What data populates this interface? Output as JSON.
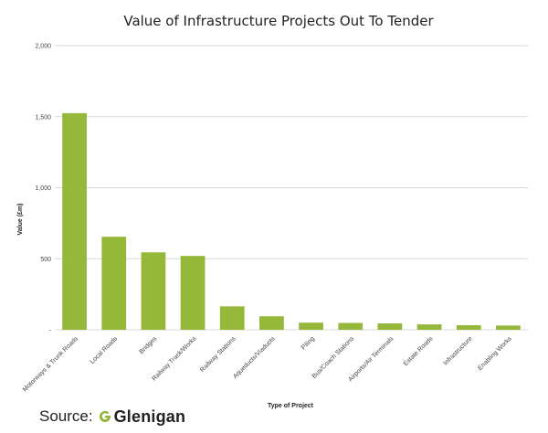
{
  "chart_data": {
    "type": "bar",
    "title": "Value of Infrastructure Projects Out To Tender",
    "xlabel": "Type of Project",
    "ylabel": "Value (£m)",
    "ylim": [
      0,
      2000
    ],
    "yticks": [
      0,
      500,
      1000,
      1500,
      2000
    ],
    "yticklabels": [
      "-",
      "500",
      "1,000",
      "1,500",
      "2,000"
    ],
    "grid": true,
    "bar_color": "#95b83a",
    "categories": [
      "Motorways & Trunk Roads",
      "Local Roads",
      "Bridges",
      "Railway Track/Works",
      "Railway Stations",
      "Aqueducts/Viaducts",
      "Piling",
      "Bus/Coach Stations",
      "Airports/Air Terminals",
      "Estate Roads",
      "Infrastructure",
      "Enabling Works"
    ],
    "values": [
      1525,
      655,
      545,
      520,
      165,
      95,
      50,
      48,
      45,
      38,
      32,
      30
    ]
  },
  "source": {
    "label": "Source:",
    "logo_text": "Glenigan",
    "logo_color": "#8db534"
  }
}
